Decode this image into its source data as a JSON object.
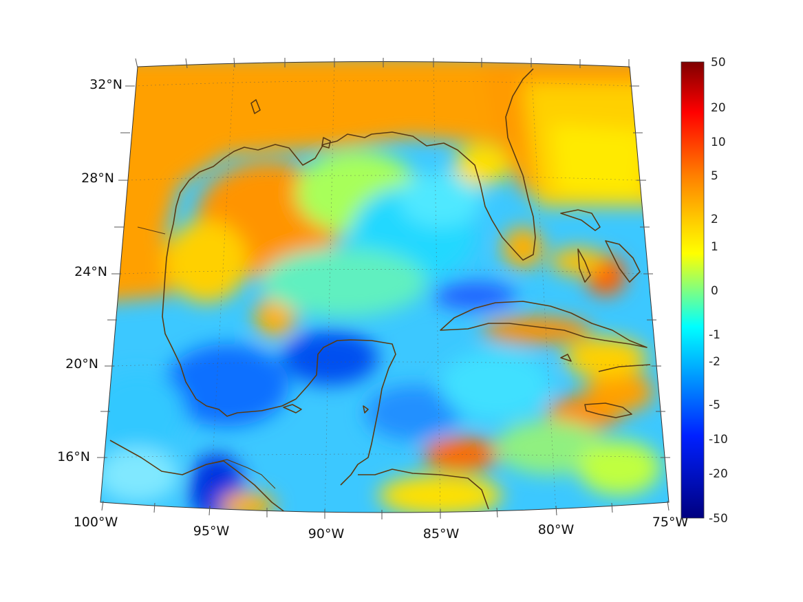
{
  "map": {
    "region": "Gulf of Mexico and Caribbean",
    "lon_ticks": [
      {
        "value": -100,
        "label": "100°W"
      },
      {
        "value": -95,
        "label": "95°W"
      },
      {
        "value": -90,
        "label": "90°W"
      },
      {
        "value": -85,
        "label": "85°W"
      },
      {
        "value": -80,
        "label": "80°W"
      },
      {
        "value": -75,
        "label": "75°W"
      }
    ],
    "lat_ticks": [
      {
        "value": 32,
        "label": "32°N"
      },
      {
        "value": 28,
        "label": "28°N"
      },
      {
        "value": 24,
        "label": "24°N"
      },
      {
        "value": 20,
        "label": "20°N"
      },
      {
        "value": 16,
        "label": "16°N"
      }
    ],
    "lon_range": [
      -100,
      -75
    ],
    "lat_range": [
      14,
      33
    ],
    "grid": true
  },
  "colorbar": {
    "labels": [
      "50",
      "20",
      "10",
      "5",
      "2",
      "1",
      "0",
      "-1",
      "-2",
      "-5",
      "-10",
      "-20",
      "-50"
    ],
    "colormap": "jet",
    "colors": {
      "high": "#7f0000",
      "low": "#00007f"
    }
  },
  "colors": {
    "coastline": "#5a3a12"
  }
}
